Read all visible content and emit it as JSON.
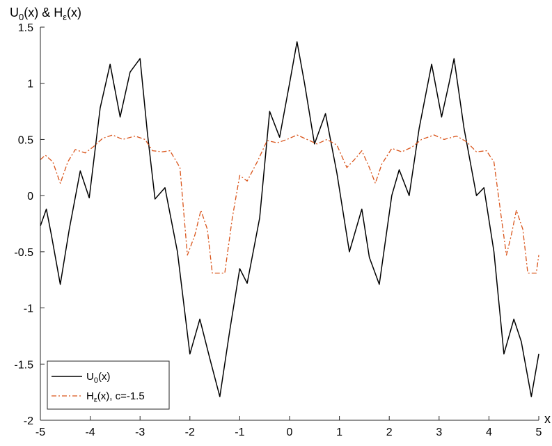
{
  "chart_data": {
    "type": "line",
    "ylabel_parts": {
      "u": "U",
      "u_sub": "0",
      "mid": "(x) & H",
      "h_sub": "ε",
      "end": "(x)"
    },
    "xlabel": "x",
    "xlim": [
      -5,
      5
    ],
    "ylim": [
      -2,
      1.5
    ],
    "xticks": [
      -5,
      -4,
      -3,
      -2,
      -1,
      0,
      1,
      2,
      3,
      4,
      5
    ],
    "yticks": [
      -2,
      -1.5,
      -1,
      -0.5,
      0,
      0.5,
      1,
      1.5
    ],
    "xtick_labels": [
      "-5",
      "-4",
      "-3",
      "-2",
      "-1",
      "0",
      "1",
      "2",
      "3",
      "4",
      "5"
    ],
    "ytick_labels": [
      "-2",
      "-1.5",
      "-1",
      "-0.5",
      "0",
      "0.5",
      "1",
      "1.5"
    ],
    "legend_position": "bottom-left",
    "grid": false,
    "series": [
      {
        "legend_main": "U",
        "legend_sub": "0",
        "legend_rest": "(x)",
        "color": "#000000",
        "style": "solid",
        "points": [
          [
            -5,
            -0.27
          ],
          [
            -4.88,
            -0.12
          ],
          [
            -4.78,
            -0.35
          ],
          [
            -4.6,
            -0.79
          ],
          [
            -4.42,
            -0.3
          ],
          [
            -4.2,
            0.22
          ],
          [
            -4.02,
            -0.02
          ],
          [
            -3.8,
            0.78
          ],
          [
            -3.6,
            1.17
          ],
          [
            -3.4,
            0.7
          ],
          [
            -3.2,
            1.1
          ],
          [
            -3.0,
            1.22
          ],
          [
            -2.85,
            0.55
          ],
          [
            -2.7,
            -0.03
          ],
          [
            -2.5,
            0.07
          ],
          [
            -2.25,
            -0.5
          ],
          [
            -2.0,
            -1.41
          ],
          [
            -1.8,
            -1.1
          ],
          [
            -1.6,
            -1.45
          ],
          [
            -1.4,
            -1.79
          ],
          [
            -1.2,
            -1.2
          ],
          [
            -1.0,
            -0.65
          ],
          [
            -0.85,
            -0.78
          ],
          [
            -0.6,
            -0.2
          ],
          [
            -0.4,
            0.75
          ],
          [
            -0.2,
            0.52
          ],
          [
            0,
            1.0
          ],
          [
            0.15,
            1.37
          ],
          [
            0.3,
            1.0
          ],
          [
            0.5,
            0.46
          ],
          [
            0.72,
            0.73
          ],
          [
            0.95,
            0.2
          ],
          [
            1.2,
            -0.5
          ],
          [
            1.45,
            -0.12
          ],
          [
            1.6,
            -0.55
          ],
          [
            1.8,
            -0.79
          ],
          [
            2.05,
            0.0
          ],
          [
            2.2,
            0.23
          ],
          [
            2.4,
            0.0
          ],
          [
            2.6,
            0.6
          ],
          [
            2.85,
            1.17
          ],
          [
            3.05,
            0.7
          ],
          [
            3.2,
            1.0
          ],
          [
            3.3,
            1.22
          ],
          [
            3.5,
            0.6
          ],
          [
            3.75,
            0.0
          ],
          [
            3.9,
            0.07
          ],
          [
            4.1,
            -0.5
          ],
          [
            4.3,
            -1.41
          ],
          [
            4.5,
            -1.1
          ],
          [
            4.65,
            -1.3
          ],
          [
            4.85,
            -1.79
          ],
          [
            5.0,
            -1.41
          ]
        ]
      },
      {
        "legend_main": "H",
        "legend_sub": "ε",
        "legend_rest": "(x), c=-1.5",
        "color": "#D95319",
        "style": "dash-dot",
        "points": [
          [
            -5,
            0.32
          ],
          [
            -4.9,
            0.36
          ],
          [
            -4.75,
            0.3
          ],
          [
            -4.6,
            0.11
          ],
          [
            -4.45,
            0.3
          ],
          [
            -4.3,
            0.41
          ],
          [
            -4.1,
            0.38
          ],
          [
            -3.95,
            0.43
          ],
          [
            -3.75,
            0.51
          ],
          [
            -3.55,
            0.54
          ],
          [
            -3.35,
            0.5
          ],
          [
            -3.1,
            0.53
          ],
          [
            -2.9,
            0.5
          ],
          [
            -2.75,
            0.4
          ],
          [
            -2.55,
            0.39
          ],
          [
            -2.4,
            0.4
          ],
          [
            -2.2,
            0.25
          ],
          [
            -2.05,
            -0.53
          ],
          [
            -1.9,
            -0.35
          ],
          [
            -1.78,
            -0.13
          ],
          [
            -1.65,
            -0.3
          ],
          [
            -1.55,
            -0.69
          ],
          [
            -1.3,
            -0.69
          ],
          [
            -1.15,
            -0.2
          ],
          [
            -1.0,
            0.18
          ],
          [
            -0.85,
            0.13
          ],
          [
            -0.65,
            0.3
          ],
          [
            -0.45,
            0.49
          ],
          [
            -0.25,
            0.47
          ],
          [
            -0.05,
            0.5
          ],
          [
            0.15,
            0.54
          ],
          [
            0.35,
            0.5
          ],
          [
            0.55,
            0.46
          ],
          [
            0.75,
            0.5
          ],
          [
            0.95,
            0.45
          ],
          [
            1.15,
            0.25
          ],
          [
            1.3,
            0.32
          ],
          [
            1.45,
            0.4
          ],
          [
            1.6,
            0.25
          ],
          [
            1.72,
            0.11
          ],
          [
            1.85,
            0.28
          ],
          [
            2.05,
            0.42
          ],
          [
            2.25,
            0.39
          ],
          [
            2.45,
            0.43
          ],
          [
            2.65,
            0.5
          ],
          [
            2.9,
            0.54
          ],
          [
            3.1,
            0.5
          ],
          [
            3.35,
            0.53
          ],
          [
            3.55,
            0.48
          ],
          [
            3.75,
            0.39
          ],
          [
            3.95,
            0.4
          ],
          [
            4.1,
            0.3
          ],
          [
            4.25,
            -0.2
          ],
          [
            4.35,
            -0.53
          ],
          [
            4.45,
            -0.35
          ],
          [
            4.55,
            -0.13
          ],
          [
            4.68,
            -0.3
          ],
          [
            4.78,
            -0.69
          ],
          [
            4.95,
            -0.69
          ],
          [
            5.0,
            -0.53
          ]
        ]
      }
    ]
  }
}
